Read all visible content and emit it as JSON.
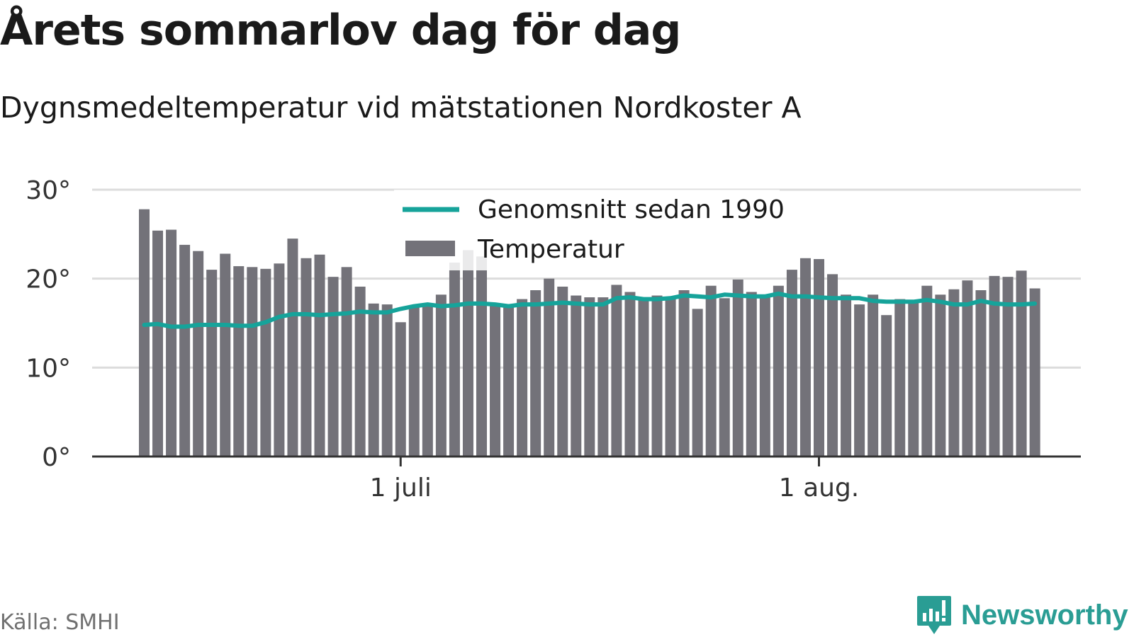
{
  "header": {
    "title": "Årets sommarlov dag för dag",
    "subtitle": "Dygnsmedeltemperatur vid mätstationen Nordkoster A"
  },
  "footer": {
    "source": "Källa: SMHI",
    "brand": "Newsworthy",
    "brand_icon": "newsworthy-logo-icon"
  },
  "colors": {
    "bars": "#737279",
    "line": "#16a39a",
    "grid": "#dcdcdc",
    "axis": "#333333",
    "brand": "#2a9d94"
  },
  "chart_data": {
    "type": "bar",
    "x_start": "2023-06-12",
    "x_end": "2023-08-18",
    "ylim": [
      0,
      30
    ],
    "y_ticks": [
      0,
      10,
      20,
      30
    ],
    "y_tick_labels": [
      "0°",
      "10°",
      "20°",
      "30°"
    ],
    "x_ticks": [
      {
        "date": "2023-07-01",
        "label": "1 juli"
      },
      {
        "date": "2023-08-01",
        "label": "1 aug."
      }
    ],
    "grid": true,
    "legend_position": "top-center",
    "series": [
      {
        "name": "Temperatur",
        "type": "bar",
        "values": [
          27.8,
          25.4,
          25.5,
          23.8,
          23.1,
          21.0,
          22.8,
          21.4,
          21.3,
          21.1,
          21.7,
          24.5,
          22.3,
          22.7,
          20.2,
          21.3,
          19.1,
          17.2,
          17.1,
          15.1,
          16.9,
          16.9,
          18.2,
          21.8,
          23.2,
          22.5,
          17.1,
          16.9,
          17.7,
          18.7,
          20.0,
          19.1,
          18.1,
          17.9,
          17.9,
          19.3,
          18.5,
          17.6,
          18.1,
          17.8,
          18.7,
          16.6,
          19.2,
          17.8,
          19.9,
          18.5,
          18.0,
          19.2,
          21.0,
          22.3,
          22.2,
          20.5,
          18.2,
          17.1,
          18.2,
          15.9,
          17.7,
          17.6,
          19.2,
          18.2,
          18.8,
          19.8,
          18.7,
          20.3,
          20.2,
          20.9,
          18.9
        ]
      },
      {
        "name": "Genomsnitt sedan 1990",
        "type": "line",
        "values": [
          14.8,
          14.9,
          14.6,
          14.6,
          14.8,
          14.8,
          14.8,
          14.7,
          14.7,
          15.1,
          15.7,
          16.0,
          16.0,
          15.9,
          16.0,
          16.1,
          16.3,
          16.2,
          16.2,
          16.6,
          16.9,
          17.1,
          16.9,
          17.0,
          17.2,
          17.2,
          17.1,
          16.9,
          17.1,
          17.1,
          17.2,
          17.3,
          17.2,
          17.1,
          17.1,
          17.8,
          17.9,
          17.7,
          17.7,
          17.8,
          18.1,
          18.0,
          17.9,
          18.2,
          18.1,
          18.0,
          18.0,
          18.3,
          18.0,
          18.0,
          17.9,
          17.8,
          17.8,
          17.8,
          17.5,
          17.4,
          17.4,
          17.4,
          17.6,
          17.4,
          17.1,
          17.1,
          17.5,
          17.2,
          17.1,
          17.1,
          17.2
        ]
      }
    ]
  }
}
